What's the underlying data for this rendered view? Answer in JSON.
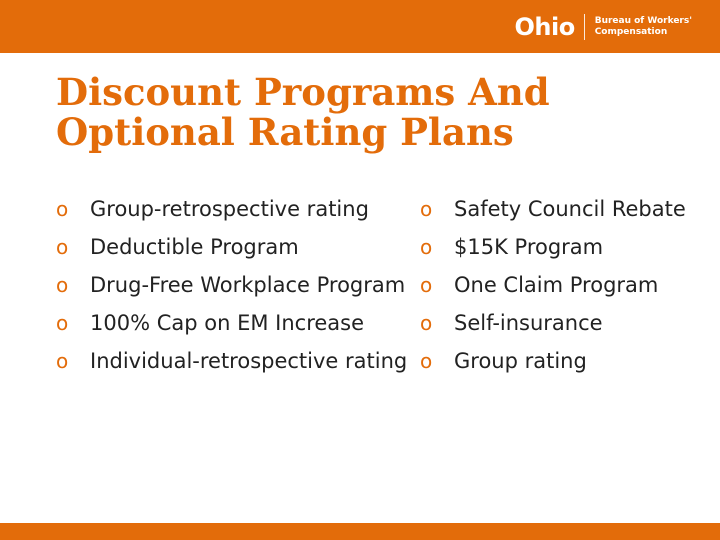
{
  "header": {
    "logo_word": "Ohio",
    "logo_line1": "Bureau of Workers'",
    "logo_line2": "Compensation"
  },
  "slide": {
    "title_line1": "Discount Programs And",
    "title_line2": "Optional Rating Plans",
    "bullet_glyph": "o",
    "left_items": [
      "Group-retrospective rating",
      "Deductible Program",
      "Drug-Free Workplace Program",
      "100% Cap on EM Increase",
      "Individual-retrospective rating"
    ],
    "right_items": [
      "Safety Council Rebate",
      "$15K Program",
      "One Claim Program",
      "Self-insurance",
      "Group rating"
    ]
  },
  "colors": {
    "accent": "#e36c0a",
    "text": "#222222",
    "background": "#ffffff"
  }
}
